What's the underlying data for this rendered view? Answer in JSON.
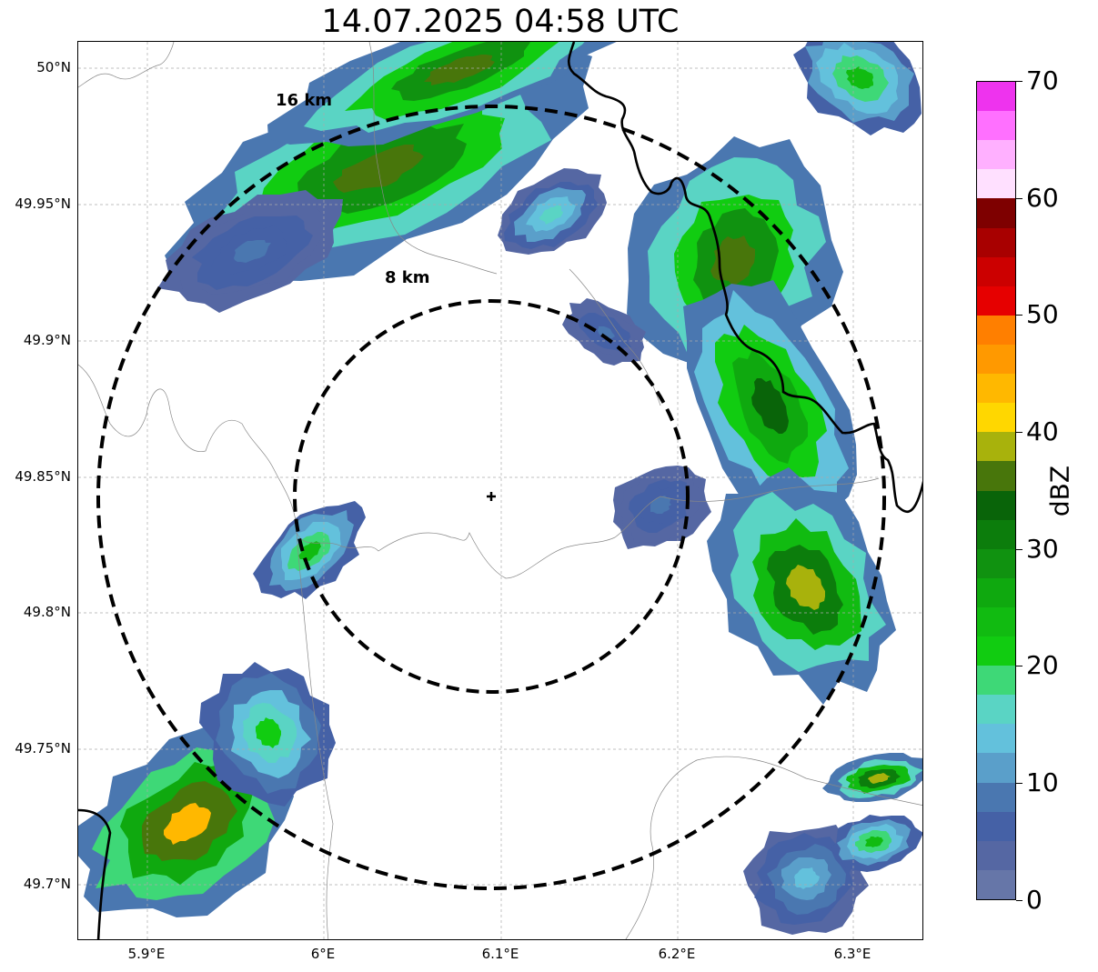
{
  "title": "14.07.2025 04:58 UTC",
  "lat_labels": [
    "50°N",
    "49.95°N",
    "49.9°N",
    "49.85°N",
    "49.8°N",
    "49.75°N",
    "49.7°N"
  ],
  "lon_labels": [
    "5.9°E",
    "6°E",
    "6.1°E",
    "6.2°E",
    "6.3°E"
  ],
  "ring_labels": [
    "16 km",
    "8 km"
  ],
  "colorbar": {
    "label": "dBZ",
    "ticks": [
      "0",
      "10",
      "20",
      "30",
      "40",
      "50",
      "60",
      "70"
    ],
    "colors": [
      "#6676a8",
      "#5567a3",
      "#4561a6",
      "#4a77b0",
      "#5a9fca",
      "#63c1dc",
      "#5ad4c4",
      "#3ed877",
      "#11cc11",
      "#11bb11",
      "#0fa90f",
      "#109210",
      "#0c7d0c",
      "#096409",
      "#48760b",
      "#a8b20c",
      "#ffd700",
      "#ffb800",
      "#ff9900",
      "#ff7f00",
      "#e60000",
      "#cc0000",
      "#a80000",
      "#7e0000",
      "#ffe0ff",
      "#ffb0ff",
      "#ff70ff",
      "#ee33ee"
    ]
  },
  "map": {
    "radar_site_icon": "plus-marker-icon",
    "extent": {
      "lon": [
        5.86,
        6.34
      ],
      "lat": [
        49.68,
        50.01
      ]
    },
    "site": {
      "lon": 6.095,
      "lat": 49.843
    }
  }
}
